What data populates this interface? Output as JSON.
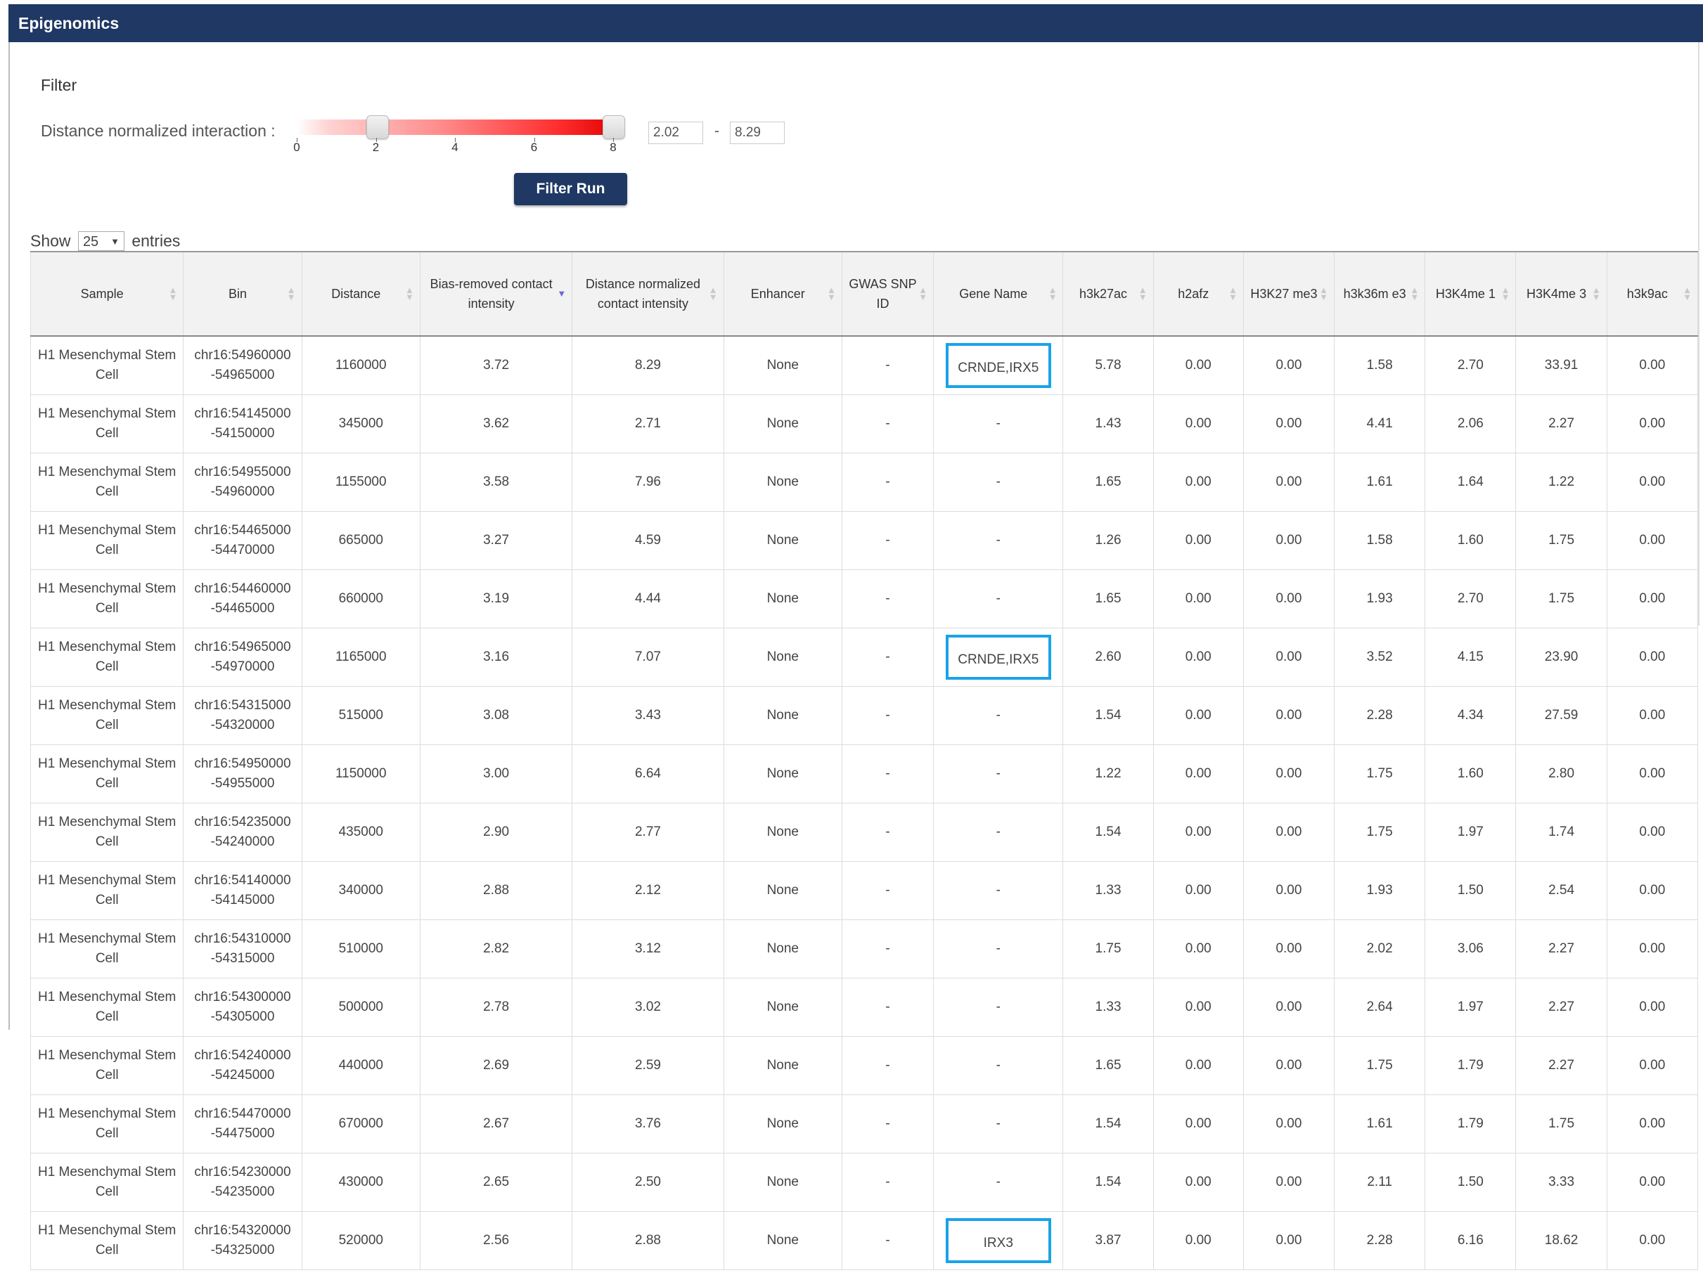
{
  "header": {
    "title": "Epigenomics"
  },
  "filter": {
    "title": "Filter",
    "label": "Distance normalized interaction :",
    "slider": {
      "min": 0,
      "max": 8,
      "ticks": [
        "0",
        "2",
        "4",
        "6",
        "8"
      ],
      "low": 2.02,
      "high": 8.29
    },
    "min_value": "2.02",
    "separator": "-",
    "max_value": "8.29",
    "run_label": "Filter Run"
  },
  "length_menu": {
    "show": "Show",
    "value": "25",
    "entries": "entries"
  },
  "table": {
    "columns": [
      "Sample",
      "Bin",
      "Distance",
      "Bias-removed contact intensity",
      "Distance normalized contact intensity",
      "Enhancer",
      "GWAS SNP ID",
      "Gene Name",
      "h3k27ac",
      "h2afz",
      "H3K27 me3",
      "h3k36m e3",
      "H3K4me 1",
      "H3K4me 3",
      "h3k9ac"
    ],
    "sorted_column": "Bias-removed contact intensity",
    "rows": [
      [
        "H1 Mesenchymal Stem Cell",
        "chr16:54960000 -54965000",
        "1160000",
        "3.72",
        "8.29",
        "None",
        "-",
        "CRNDE,IRX5",
        "5.78",
        "0.00",
        "0.00",
        "1.58",
        "2.70",
        "33.91",
        "0.00"
      ],
      [
        "H1 Mesenchymal Stem Cell",
        "chr16:54145000 -54150000",
        "345000",
        "3.62",
        "2.71",
        "None",
        "-",
        "-",
        "1.43",
        "0.00",
        "0.00",
        "4.41",
        "2.06",
        "2.27",
        "0.00"
      ],
      [
        "H1 Mesenchymal Stem Cell",
        "chr16:54955000 -54960000",
        "1155000",
        "3.58",
        "7.96",
        "None",
        "-",
        "-",
        "1.65",
        "0.00",
        "0.00",
        "1.61",
        "1.64",
        "1.22",
        "0.00"
      ],
      [
        "H1 Mesenchymal Stem Cell",
        "chr16:54465000 -54470000",
        "665000",
        "3.27",
        "4.59",
        "None",
        "-",
        "-",
        "1.26",
        "0.00",
        "0.00",
        "1.58",
        "1.60",
        "1.75",
        "0.00"
      ],
      [
        "H1 Mesenchymal Stem Cell",
        "chr16:54460000 -54465000",
        "660000",
        "3.19",
        "4.44",
        "None",
        "-",
        "-",
        "1.65",
        "0.00",
        "0.00",
        "1.93",
        "2.70",
        "1.75",
        "0.00"
      ],
      [
        "H1 Mesenchymal Stem Cell",
        "chr16:54965000 -54970000",
        "1165000",
        "3.16",
        "7.07",
        "None",
        "-",
        "CRNDE,IRX5",
        "2.60",
        "0.00",
        "0.00",
        "3.52",
        "4.15",
        "23.90",
        "0.00"
      ],
      [
        "H1 Mesenchymal Stem Cell",
        "chr16:54315000 -54320000",
        "515000",
        "3.08",
        "3.43",
        "None",
        "-",
        "-",
        "1.54",
        "0.00",
        "0.00",
        "2.28",
        "4.34",
        "27.59",
        "0.00"
      ],
      [
        "H1 Mesenchymal Stem Cell",
        "chr16:54950000 -54955000",
        "1150000",
        "3.00",
        "6.64",
        "None",
        "-",
        "-",
        "1.22",
        "0.00",
        "0.00",
        "1.75",
        "1.60",
        "2.80",
        "0.00"
      ],
      [
        "H1 Mesenchymal Stem Cell",
        "chr16:54235000 -54240000",
        "435000",
        "2.90",
        "2.77",
        "None",
        "-",
        "-",
        "1.54",
        "0.00",
        "0.00",
        "1.75",
        "1.97",
        "1.74",
        "0.00"
      ],
      [
        "H1 Mesenchymal Stem Cell",
        "chr16:54140000 -54145000",
        "340000",
        "2.88",
        "2.12",
        "None",
        "-",
        "-",
        "1.33",
        "0.00",
        "0.00",
        "1.93",
        "1.50",
        "2.54",
        "0.00"
      ],
      [
        "H1 Mesenchymal Stem Cell",
        "chr16:54310000 -54315000",
        "510000",
        "2.82",
        "3.12",
        "None",
        "-",
        "-",
        "1.75",
        "0.00",
        "0.00",
        "2.02",
        "3.06",
        "2.27",
        "0.00"
      ],
      [
        "H1 Mesenchymal Stem Cell",
        "chr16:54300000 -54305000",
        "500000",
        "2.78",
        "3.02",
        "None",
        "-",
        "-",
        "1.33",
        "0.00",
        "0.00",
        "2.64",
        "1.97",
        "2.27",
        "0.00"
      ],
      [
        "H1 Mesenchymal Stem Cell",
        "chr16:54240000 -54245000",
        "440000",
        "2.69",
        "2.59",
        "None",
        "-",
        "-",
        "1.65",
        "0.00",
        "0.00",
        "1.75",
        "1.79",
        "2.27",
        "0.00"
      ],
      [
        "H1 Mesenchymal Stem Cell",
        "chr16:54470000 -54475000",
        "670000",
        "2.67",
        "3.76",
        "None",
        "-",
        "-",
        "1.54",
        "0.00",
        "0.00",
        "1.61",
        "1.79",
        "1.75",
        "0.00"
      ],
      [
        "H1 Mesenchymal Stem Cell",
        "chr16:54230000 -54235000",
        "430000",
        "2.65",
        "2.50",
        "None",
        "-",
        "-",
        "1.54",
        "0.00",
        "0.00",
        "2.11",
        "1.50",
        "3.33",
        "0.00"
      ],
      [
        "H1 Mesenchymal Stem Cell",
        "chr16:54320000 -54325000",
        "520000",
        "2.56",
        "2.88",
        "None",
        "-",
        "IRX3",
        "3.87",
        "0.00",
        "0.00",
        "2.28",
        "6.16",
        "18.62",
        "0.00"
      ]
    ],
    "highlighted_rows": [
      0,
      5,
      15
    ],
    "highlight_color": "#1aa3e8"
  },
  "colors": {
    "header_bg": "#1f3864",
    "button_bg": "#1f3864"
  }
}
